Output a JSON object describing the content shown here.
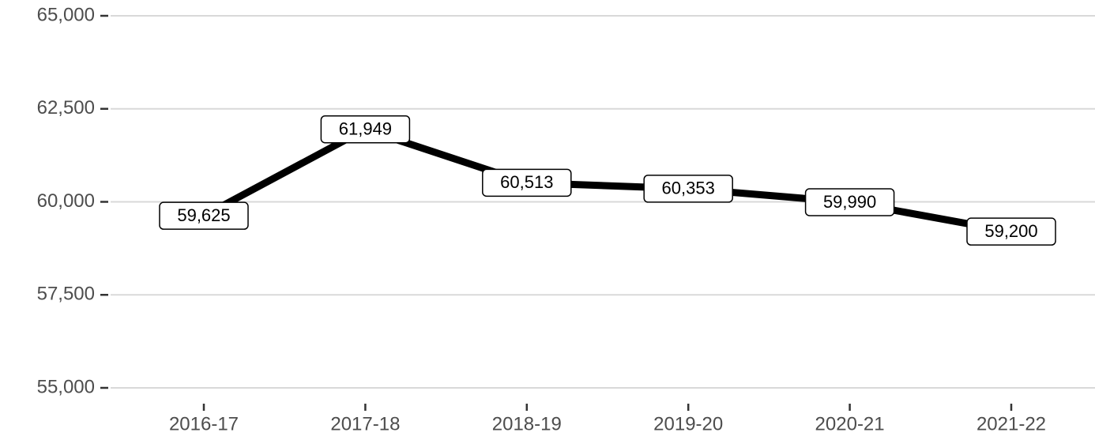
{
  "chart_data": {
    "type": "line",
    "categories": [
      "2016-17",
      "2017-18",
      "2018-19",
      "2019-20",
      "2020-21",
      "2021-22"
    ],
    "values": [
      59625,
      61949,
      60513,
      60353,
      59990,
      59200
    ],
    "value_labels": [
      "59,625",
      "61,949",
      "60,513",
      "60,353",
      "59,990",
      "59,200"
    ],
    "color": "#000000",
    "ylim": [
      55000,
      65000
    ],
    "yticks": [
      {
        "value": 55000,
        "label": "55,000"
      },
      {
        "value": 57500,
        "label": "57,500"
      },
      {
        "value": 60000,
        "label": "60,000"
      },
      {
        "value": 62500,
        "label": "62,500"
      },
      {
        "value": 65000,
        "label": "65,000"
      }
    ],
    "grid": true
  }
}
